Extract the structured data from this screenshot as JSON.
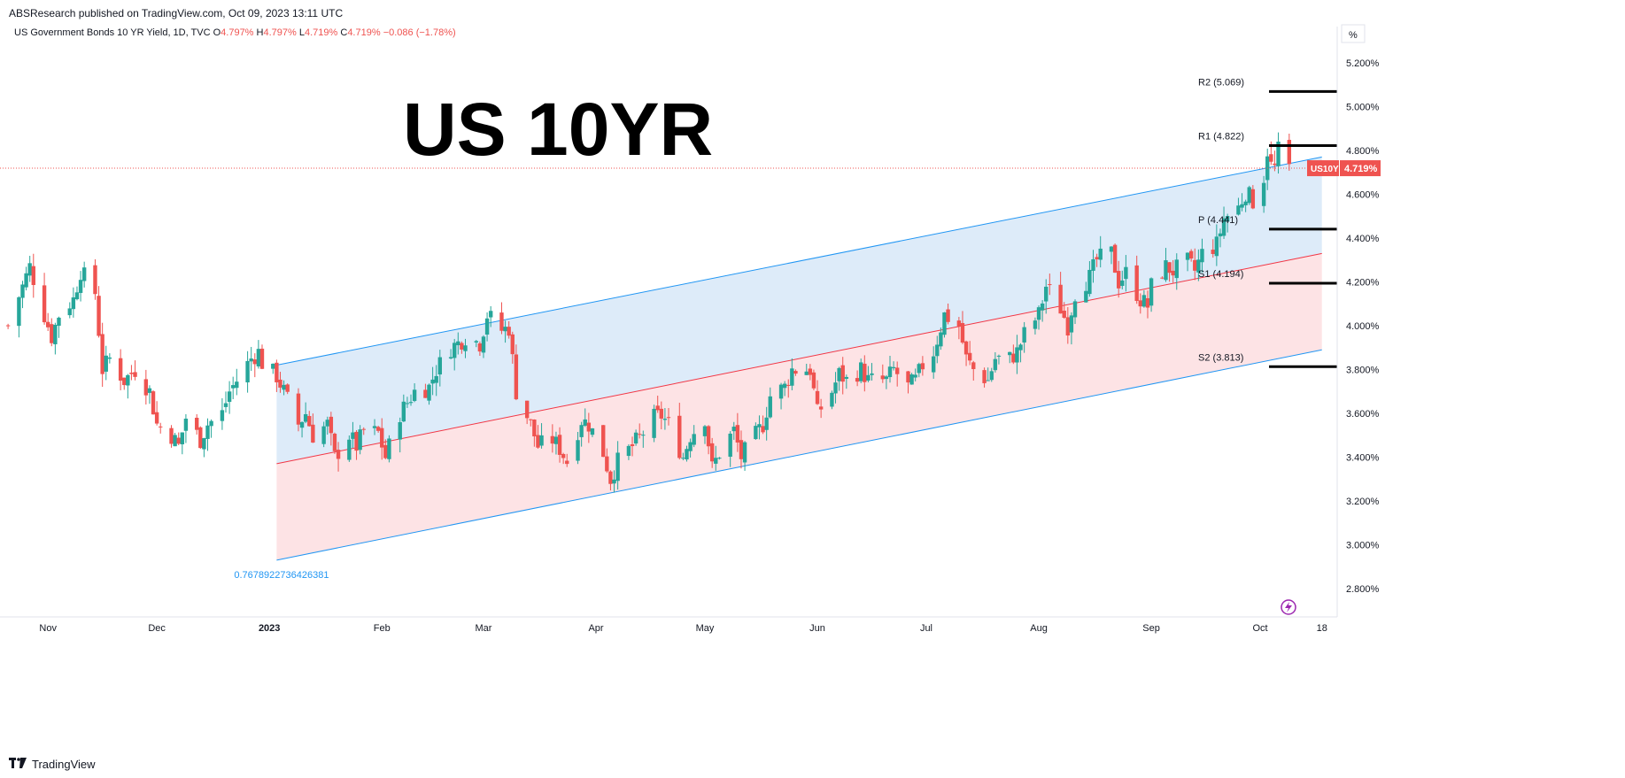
{
  "header": {
    "published": "ABSResearch published on TradingView.com, Oct 09, 2023 13:11 UTC"
  },
  "legend": {
    "symbol": "US Government Bonds 10 YR Yield, 1D, TVC",
    "o_label": "O",
    "o_value": "4.797%",
    "h_label": "H",
    "h_value": "4.797%",
    "l_label": "L",
    "l_value": "4.719%",
    "c_label": "C",
    "c_value": "4.719%",
    "change": "−0.086 (−1.78%)"
  },
  "big_title": "US 10YR",
  "percent_button": "%",
  "footer": {
    "brand": "TradingView"
  },
  "colors": {
    "up": "#26a69a",
    "down": "#ef5350",
    "channel_line": "#2196f3",
    "mid_line": "#f23645",
    "fill_upper": "#dbeaf9",
    "fill_lower": "#fde1e4"
  },
  "chart_data": {
    "type": "candlestick",
    "title": "US 10YR",
    "symbol": "US10Y",
    "last_price_label": "US10Y",
    "last_price": 4.719,
    "last_price_text": "4.719%",
    "ylim": [
      2.68,
      5.3
    ],
    "x_range": [
      "2022-10-20",
      "2023-10-21"
    ],
    "y_ticks": [
      2.8,
      3.0,
      3.2,
      3.4,
      3.6,
      3.8,
      4.0,
      4.2,
      4.4,
      4.6,
      4.8,
      5.0,
      5.2
    ],
    "y_tick_labels": [
      "2.800%",
      "3.000%",
      "3.200%",
      "3.400%",
      "3.600%",
      "3.800%",
      "4.000%",
      "4.200%",
      "4.400%",
      "4.600%",
      "4.800%",
      "5.000%",
      "5.200%"
    ],
    "x_ticks": [
      {
        "date": "2022-11-01",
        "label": "Nov"
      },
      {
        "date": "2022-12-01",
        "label": "Dec"
      },
      {
        "date": "2023-01-01",
        "label": "2023"
      },
      {
        "date": "2023-02-01",
        "label": "Feb"
      },
      {
        "date": "2023-03-01",
        "label": "Mar"
      },
      {
        "date": "2023-04-01",
        "label": "Apr"
      },
      {
        "date": "2023-05-01",
        "label": "May"
      },
      {
        "date": "2023-06-01",
        "label": "Jun"
      },
      {
        "date": "2023-07-01",
        "label": "Jul"
      },
      {
        "date": "2023-08-01",
        "label": "Aug"
      },
      {
        "date": "2023-09-01",
        "label": "Sep"
      },
      {
        "date": "2023-10-01",
        "label": "Oct"
      },
      {
        "date": "2023-10-18",
        "label": "18"
      }
    ],
    "close_path": [
      [
        "2022-10-21",
        4.0
      ],
      [
        "2022-10-25",
        4.18
      ],
      [
        "2022-10-27",
        4.27
      ],
      [
        "2022-10-31",
        4.05
      ],
      [
        "2022-11-02",
        3.95
      ],
      [
        "2022-11-04",
        4.05
      ],
      [
        "2022-11-08",
        4.12
      ],
      [
        "2022-11-10",
        4.25
      ],
      [
        "2022-11-14",
        4.15
      ],
      [
        "2022-11-16",
        3.8
      ],
      [
        "2022-11-18",
        3.85
      ],
      [
        "2022-11-22",
        3.75
      ],
      [
        "2022-11-25",
        3.8
      ],
      [
        "2022-11-29",
        3.7
      ],
      [
        "2022-12-01",
        3.55
      ],
      [
        "2022-12-05",
        3.5
      ],
      [
        "2022-12-07",
        3.45
      ],
      [
        "2022-12-09",
        3.58
      ],
      [
        "2022-12-13",
        3.48
      ],
      [
        "2022-12-15",
        3.55
      ],
      [
        "2022-12-19",
        3.6
      ],
      [
        "2022-12-21",
        3.7
      ],
      [
        "2022-12-23",
        3.75
      ],
      [
        "2022-12-27",
        3.85
      ],
      [
        "2022-12-29",
        3.88
      ],
      [
        "2022-12-30",
        3.83
      ],
      [
        "2023-01-03",
        3.77
      ],
      [
        "2023-01-05",
        3.7
      ],
      [
        "2023-01-09",
        3.55
      ],
      [
        "2023-01-11",
        3.6
      ],
      [
        "2023-01-13",
        3.5
      ],
      [
        "2023-01-17",
        3.55
      ],
      [
        "2023-01-19",
        3.4
      ],
      [
        "2023-01-23",
        3.5
      ],
      [
        "2023-01-25",
        3.45
      ],
      [
        "2023-01-27",
        3.52
      ],
      [
        "2023-01-31",
        3.51
      ],
      [
        "2023-02-02",
        3.4
      ],
      [
        "2023-02-06",
        3.6
      ],
      [
        "2023-02-08",
        3.65
      ],
      [
        "2023-02-10",
        3.7
      ],
      [
        "2023-02-14",
        3.72
      ],
      [
        "2023-02-16",
        3.8
      ],
      [
        "2023-02-20",
        3.9
      ],
      [
        "2023-02-22",
        3.92
      ],
      [
        "2023-02-24",
        3.95
      ],
      [
        "2023-02-28",
        3.92
      ],
      [
        "2023-03-02",
        4.05
      ],
      [
        "2023-03-06",
        3.98
      ],
      [
        "2023-03-08",
        3.99
      ],
      [
        "2023-03-10",
        3.7
      ],
      [
        "2023-03-14",
        3.55
      ],
      [
        "2023-03-16",
        3.45
      ],
      [
        "2023-03-20",
        3.48
      ],
      [
        "2023-03-22",
        3.44
      ],
      [
        "2023-03-24",
        3.38
      ],
      [
        "2023-03-28",
        3.57
      ],
      [
        "2023-03-30",
        3.55
      ],
      [
        "2023-04-03",
        3.42
      ],
      [
        "2023-04-05",
        3.3
      ],
      [
        "2023-04-07",
        3.38
      ],
      [
        "2023-04-11",
        3.45
      ],
      [
        "2023-04-13",
        3.49
      ],
      [
        "2023-04-17",
        3.58
      ],
      [
        "2023-04-19",
        3.59
      ],
      [
        "2023-04-21",
        3.55
      ],
      [
        "2023-04-25",
        3.4
      ],
      [
        "2023-04-27",
        3.5
      ],
      [
        "2023-05-01",
        3.58
      ],
      [
        "2023-05-03",
        3.35
      ],
      [
        "2023-05-05",
        3.42
      ],
      [
        "2023-05-09",
        3.52
      ],
      [
        "2023-05-11",
        3.4
      ],
      [
        "2023-05-15",
        3.5
      ],
      [
        "2023-05-17",
        3.55
      ],
      [
        "2023-05-19",
        3.68
      ],
      [
        "2023-05-23",
        3.72
      ],
      [
        "2023-05-25",
        3.8
      ],
      [
        "2023-05-30",
        3.8
      ],
      [
        "2023-06-01",
        3.6
      ],
      [
        "2023-06-05",
        3.7
      ],
      [
        "2023-06-07",
        3.78
      ],
      [
        "2023-06-09",
        3.75
      ],
      [
        "2023-06-13",
        3.8
      ],
      [
        "2023-06-15",
        3.75
      ],
      [
        "2023-06-20",
        3.75
      ],
      [
        "2023-06-22",
        3.8
      ],
      [
        "2023-06-26",
        3.72
      ],
      [
        "2023-06-28",
        3.75
      ],
      [
        "2023-06-30",
        3.82
      ],
      [
        "2023-07-03",
        3.88
      ],
      [
        "2023-07-06",
        4.05
      ],
      [
        "2023-07-10",
        4.0
      ],
      [
        "2023-07-12",
        3.85
      ],
      [
        "2023-07-14",
        3.8
      ],
      [
        "2023-07-18",
        3.75
      ],
      [
        "2023-07-20",
        3.85
      ],
      [
        "2023-07-24",
        3.85
      ],
      [
        "2023-07-26",
        3.88
      ],
      [
        "2023-07-28",
        3.96
      ],
      [
        "2023-08-01",
        4.05
      ],
      [
        "2023-08-03",
        4.18
      ],
      [
        "2023-08-07",
        4.08
      ],
      [
        "2023-08-09",
        4.0
      ],
      [
        "2023-08-11",
        4.15
      ],
      [
        "2023-08-15",
        4.22
      ],
      [
        "2023-08-17",
        4.3
      ],
      [
        "2023-08-21",
        4.33
      ],
      [
        "2023-08-23",
        4.2
      ],
      [
        "2023-08-25",
        4.24
      ],
      [
        "2023-08-29",
        4.12
      ],
      [
        "2023-08-31",
        4.09
      ],
      [
        "2023-09-01",
        4.18
      ],
      [
        "2023-09-05",
        4.27
      ],
      [
        "2023-09-07",
        4.25
      ],
      [
        "2023-09-11",
        4.29
      ],
      [
        "2023-09-13",
        4.25
      ],
      [
        "2023-09-15",
        4.33
      ],
      [
        "2023-09-19",
        4.37
      ],
      [
        "2023-09-21",
        4.49
      ],
      [
        "2023-09-25",
        4.54
      ],
      [
        "2023-09-27",
        4.61
      ],
      [
        "2023-09-29",
        4.57
      ],
      [
        "2023-10-02",
        4.68
      ],
      [
        "2023-10-03",
        4.8
      ],
      [
        "2023-10-04",
        4.73
      ],
      [
        "2023-10-05",
        4.72
      ],
      [
        "2023-10-06",
        4.8
      ],
      [
        "2023-10-09",
        4.72
      ]
    ],
    "channel": {
      "upper": [
        [
          "2023-01-03",
          3.82
        ],
        [
          "2023-10-18",
          4.77
        ]
      ],
      "middle": [
        [
          "2023-01-03",
          3.37
        ],
        [
          "2023-10-18",
          4.33
        ]
      ],
      "lower": [
        [
          "2023-01-03",
          2.93
        ],
        [
          "2023-10-18",
          3.89
        ]
      ],
      "label": "0.7678922736426381"
    },
    "pivot_levels": [
      {
        "name": "R2",
        "value": 5.069,
        "label": "R2 (5.069)"
      },
      {
        "name": "R1",
        "value": 4.822,
        "label": "R1 (4.822)"
      },
      {
        "name": "P",
        "value": 4.441,
        "label": "P (4.441)"
      },
      {
        "name": "S1",
        "value": 4.194,
        "label": "S1 (4.194)"
      },
      {
        "name": "S2",
        "value": 3.813,
        "label": "S2 (3.813)"
      }
    ],
    "pivot_start": "2023-10-01",
    "grid": false
  }
}
